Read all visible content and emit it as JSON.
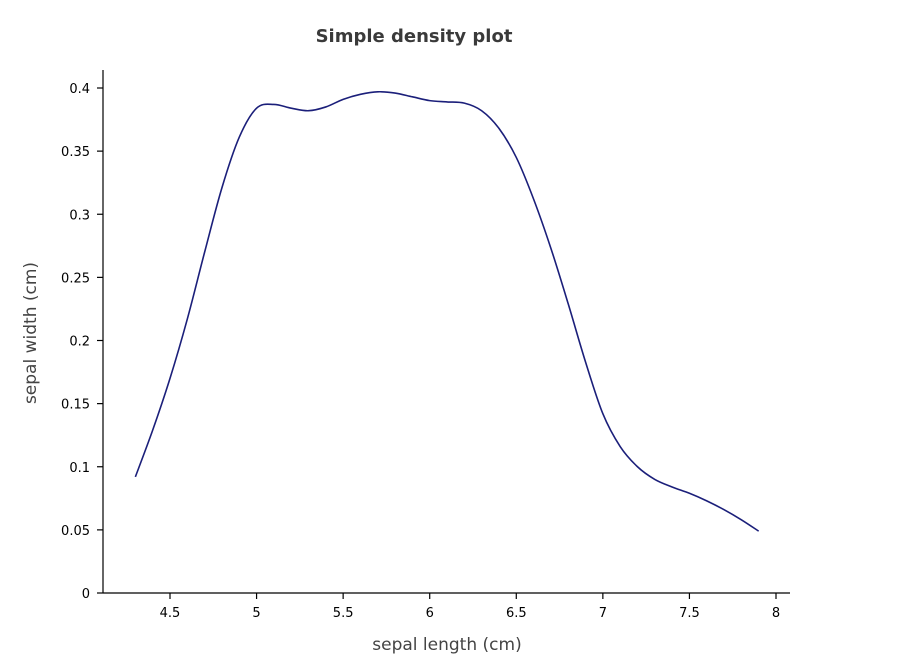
{
  "chart_data": {
    "type": "line",
    "title": "Simple density plot",
    "xlabel": "sepal length (cm)",
    "ylabel": "sepal width (cm)",
    "xlim": [
      4.1,
      8.05
    ],
    "ylim": [
      0,
      0.4
    ],
    "x_ticks": [
      4.5,
      5,
      5.5,
      6,
      6.5,
      7,
      7.5,
      8
    ],
    "x_tick_labels": [
      "4.5",
      "5",
      "5.5",
      "6",
      "6.5",
      "7",
      "7.5",
      "8"
    ],
    "y_ticks": [
      0,
      0.05,
      0.1,
      0.15,
      0.2,
      0.25,
      0.3,
      0.35,
      0.4
    ],
    "y_tick_labels": [
      "0",
      "0.05",
      "0.1",
      "0.15",
      "0.2",
      "0.25",
      "0.3",
      "0.35",
      "0.4"
    ],
    "grid": false,
    "line_color": "#1b1f7a",
    "series": [
      {
        "x": [
          4.3,
          4.4,
          4.5,
          4.6,
          4.7,
          4.8,
          4.9,
          5.0,
          5.1,
          5.2,
          5.3,
          5.4,
          5.5,
          5.6,
          5.7,
          5.8,
          5.9,
          6.0,
          6.1,
          6.2,
          6.3,
          6.4,
          6.5,
          6.6,
          6.7,
          6.8,
          6.9,
          7.0,
          7.1,
          7.2,
          7.3,
          7.4,
          7.5,
          7.6,
          7.7,
          7.8,
          7.9
        ],
        "y": [
          0.092,
          0.129,
          0.17,
          0.217,
          0.27,
          0.321,
          0.361,
          0.384,
          0.387,
          0.384,
          0.382,
          0.385,
          0.391,
          0.395,
          0.397,
          0.396,
          0.393,
          0.39,
          0.389,
          0.388,
          0.382,
          0.368,
          0.345,
          0.312,
          0.273,
          0.229,
          0.183,
          0.142,
          0.116,
          0.1,
          0.09,
          0.084,
          0.079,
          0.073,
          0.066,
          0.058,
          0.049
        ]
      }
    ]
  }
}
